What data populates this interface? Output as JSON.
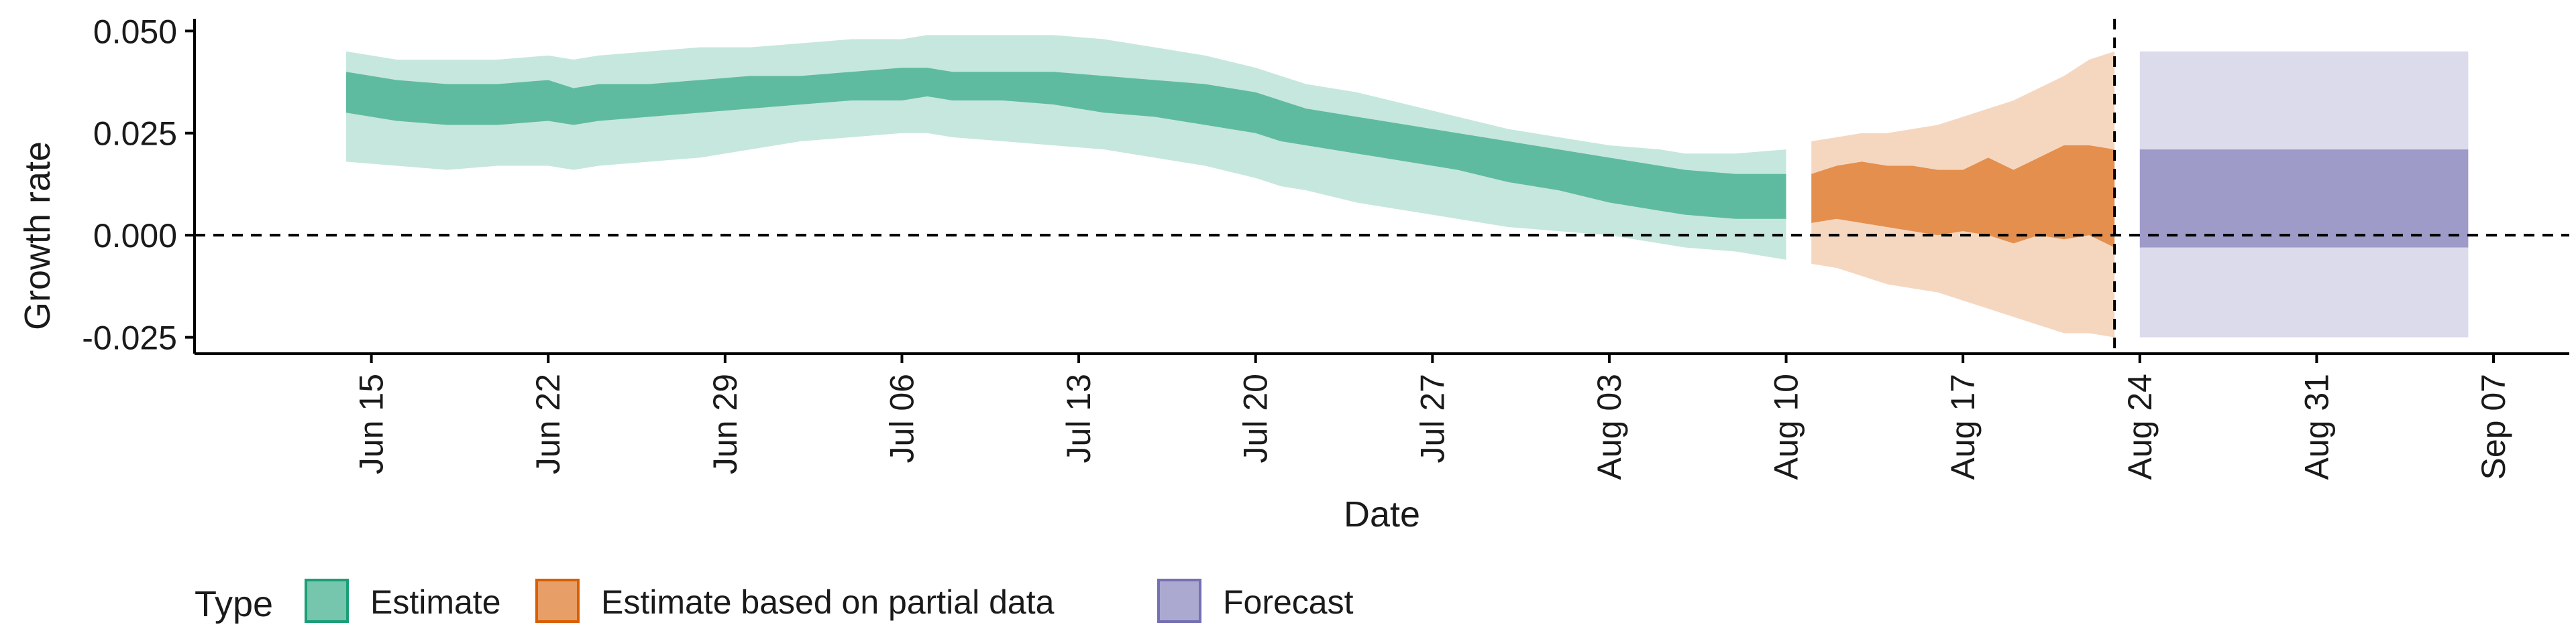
{
  "chart_data": {
    "type": "area",
    "xlabel": "Date",
    "ylabel": "Growth rate",
    "x_range": [
      "2020-06-08",
      "2020-09-10"
    ],
    "ylim": [
      -0.029,
      0.053
    ],
    "y_ticks": [
      {
        "value": 0.05,
        "label": "0.050"
      },
      {
        "value": 0.025,
        "label": "0.025"
      },
      {
        "value": 0.0,
        "label": "0.000"
      },
      {
        "value": -0.025,
        "label": "-0.025"
      }
    ],
    "x_ticks": [
      {
        "date": "2020-06-15",
        "label": "Jun 15"
      },
      {
        "date": "2020-06-22",
        "label": "Jun 22"
      },
      {
        "date": "2020-06-29",
        "label": "Jun 29"
      },
      {
        "date": "2020-07-06",
        "label": "Jul 06"
      },
      {
        "date": "2020-07-13",
        "label": "Jul 13"
      },
      {
        "date": "2020-07-20",
        "label": "Jul 20"
      },
      {
        "date": "2020-07-27",
        "label": "Jul 27"
      },
      {
        "date": "2020-08-03",
        "label": "Aug 03"
      },
      {
        "date": "2020-08-10",
        "label": "Aug 10"
      },
      {
        "date": "2020-08-17",
        "label": "Aug 17"
      },
      {
        "date": "2020-08-24",
        "label": "Aug 24"
      },
      {
        "date": "2020-08-31",
        "label": "Aug 31"
      },
      {
        "date": "2020-09-07",
        "label": "Sep 07"
      }
    ],
    "reference_lines": [
      {
        "axis": "y",
        "value": 0.0,
        "style": "dashed"
      },
      {
        "axis": "x",
        "date": "2020-08-23",
        "style": "dashed"
      }
    ],
    "grid": false,
    "legend": {
      "title": "Type",
      "position": "bottom-left"
    },
    "series": [
      {
        "name": "Estimate",
        "fill": "#1b9e77",
        "x": [
          "2020-06-14",
          "2020-06-16",
          "2020-06-18",
          "2020-06-20",
          "2020-06-22",
          "2020-06-23",
          "2020-06-24",
          "2020-06-26",
          "2020-06-28",
          "2020-06-30",
          "2020-07-02",
          "2020-07-04",
          "2020-07-06",
          "2020-07-07",
          "2020-07-08",
          "2020-07-10",
          "2020-07-12",
          "2020-07-14",
          "2020-07-16",
          "2020-07-18",
          "2020-07-20",
          "2020-07-21",
          "2020-07-22",
          "2020-07-24",
          "2020-07-26",
          "2020-07-28",
          "2020-07-30",
          "2020-08-01",
          "2020-08-03",
          "2020-08-05",
          "2020-08-06",
          "2020-08-08",
          "2020-08-10"
        ],
        "lower_90": [
          0.018,
          0.017,
          0.016,
          0.017,
          0.017,
          0.016,
          0.017,
          0.018,
          0.019,
          0.021,
          0.023,
          0.024,
          0.025,
          0.025,
          0.024,
          0.023,
          0.022,
          0.021,
          0.019,
          0.017,
          0.014,
          0.012,
          0.011,
          0.008,
          0.006,
          0.004,
          0.002,
          0.001,
          0.0,
          -0.002,
          -0.003,
          -0.004,
          -0.006
        ],
        "lower_50": [
          0.03,
          0.028,
          0.027,
          0.027,
          0.028,
          0.027,
          0.028,
          0.029,
          0.03,
          0.031,
          0.032,
          0.033,
          0.033,
          0.034,
          0.033,
          0.033,
          0.032,
          0.03,
          0.029,
          0.027,
          0.025,
          0.023,
          0.022,
          0.02,
          0.018,
          0.016,
          0.013,
          0.011,
          0.008,
          0.006,
          0.005,
          0.004,
          0.004
        ],
        "upper_50": [
          0.04,
          0.038,
          0.037,
          0.037,
          0.038,
          0.036,
          0.037,
          0.037,
          0.038,
          0.039,
          0.039,
          0.04,
          0.041,
          0.041,
          0.04,
          0.04,
          0.04,
          0.039,
          0.038,
          0.037,
          0.035,
          0.033,
          0.031,
          0.029,
          0.027,
          0.025,
          0.023,
          0.021,
          0.019,
          0.017,
          0.016,
          0.015,
          0.015
        ],
        "upper_90": [
          0.045,
          0.043,
          0.043,
          0.043,
          0.044,
          0.043,
          0.044,
          0.045,
          0.046,
          0.046,
          0.047,
          0.048,
          0.048,
          0.049,
          0.049,
          0.049,
          0.049,
          0.048,
          0.046,
          0.044,
          0.041,
          0.039,
          0.037,
          0.035,
          0.032,
          0.029,
          0.026,
          0.024,
          0.022,
          0.021,
          0.02,
          0.02,
          0.021
        ]
      },
      {
        "name": "Estimate based on partial data",
        "fill": "#d95f02",
        "x": [
          "2020-08-11",
          "2020-08-12",
          "2020-08-13",
          "2020-08-14",
          "2020-08-15",
          "2020-08-16",
          "2020-08-17",
          "2020-08-18",
          "2020-08-19",
          "2020-08-20",
          "2020-08-21",
          "2020-08-22",
          "2020-08-23"
        ],
        "lower_90": [
          -0.007,
          -0.008,
          -0.01,
          -0.012,
          -0.013,
          -0.014,
          -0.016,
          -0.018,
          -0.02,
          -0.022,
          -0.024,
          -0.024,
          -0.025
        ],
        "lower_50": [
          0.003,
          0.004,
          0.003,
          0.002,
          0.001,
          0.0,
          0.001,
          0.0,
          -0.002,
          0.0,
          -0.001,
          0.0,
          -0.003
        ],
        "upper_50": [
          0.015,
          0.017,
          0.018,
          0.017,
          0.017,
          0.016,
          0.016,
          0.019,
          0.016,
          0.019,
          0.022,
          0.022,
          0.021
        ],
        "upper_90": [
          0.023,
          0.024,
          0.025,
          0.025,
          0.026,
          0.027,
          0.029,
          0.031,
          0.033,
          0.036,
          0.039,
          0.043,
          0.045
        ]
      },
      {
        "name": "Forecast",
        "fill": "#7570b3",
        "x": [
          "2020-08-24",
          "2020-09-06"
        ],
        "lower_90": [
          -0.025,
          -0.025
        ],
        "lower_50": [
          -0.003,
          -0.003
        ],
        "upper_50": [
          0.021,
          0.021
        ],
        "upper_90": [
          0.045,
          0.045
        ]
      }
    ]
  }
}
